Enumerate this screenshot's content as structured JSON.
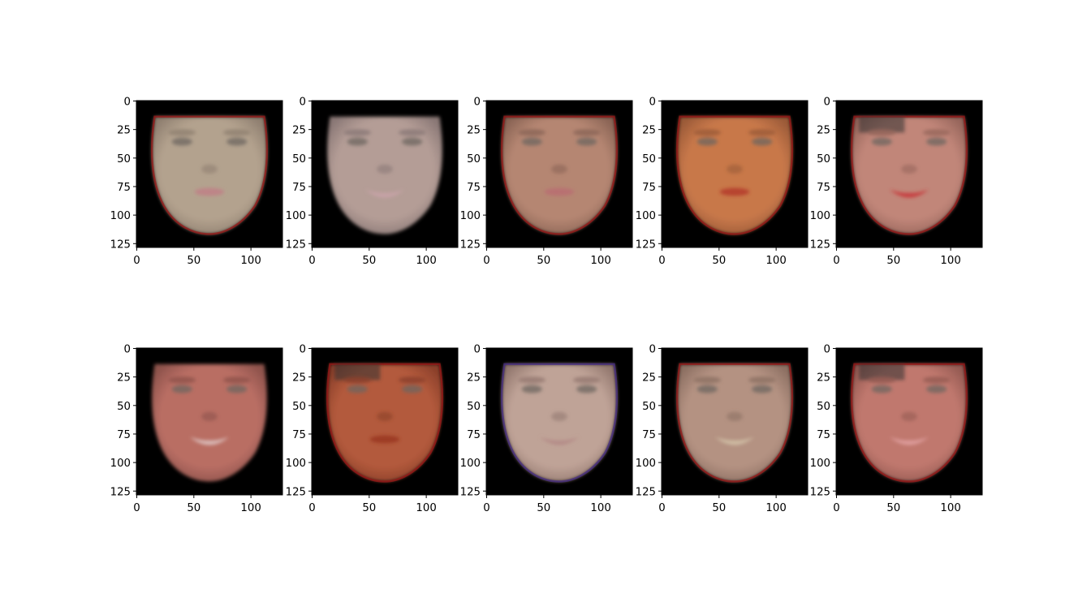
{
  "figure": {
    "rows": 2,
    "cols": 5,
    "image_extent": [
      0,
      127
    ],
    "x_ticks": [
      "0",
      "50",
      "100"
    ],
    "y_ticks": [
      "0",
      "25",
      "50",
      "75",
      "100",
      "125"
    ],
    "x_tick_values": [
      0,
      50,
      100
    ],
    "y_tick_values": [
      0,
      25,
      50,
      75,
      100,
      125
    ],
    "background_color": "#000000",
    "panels": [
      {
        "id": "face-1",
        "skin": "#b3a28e",
        "shade": "#8f7f70",
        "lips": "#c07f86",
        "smile": false,
        "artifact": "edges-red"
      },
      {
        "id": "face-2",
        "skin": "#b49d96",
        "shade": "#8a7876",
        "lips": "#c9a3a8",
        "smile": true,
        "artifact": "none"
      },
      {
        "id": "face-3",
        "skin": "#b58672",
        "shade": "#8a6455",
        "lips": "#b86c72",
        "smile": false,
        "artifact": "edges-red"
      },
      {
        "id": "face-4",
        "skin": "#c8784a",
        "shade": "#9a5a38",
        "lips": "#b4382c",
        "smile": false,
        "artifact": "edges-red"
      },
      {
        "id": "face-5",
        "skin": "#c18679",
        "shade": "#96655b",
        "lips": "#c8383b",
        "smile": true,
        "artifact": "patchy"
      },
      {
        "id": "face-6",
        "skin": "#b96e64",
        "shade": "#8d524b",
        "lips": "#dcc0be",
        "smile": true,
        "artifact": "none"
      },
      {
        "id": "face-7",
        "skin": "#b35a3c",
        "shade": "#8a3f2a",
        "lips": "#9a3622",
        "smile": false,
        "artifact": "patchy"
      },
      {
        "id": "face-8",
        "skin": "#bfa397",
        "shade": "#93786f",
        "lips": "#b48a86",
        "smile": true,
        "artifact": "edges-rgb"
      },
      {
        "id": "face-9",
        "skin": "#b49282",
        "shade": "#8c6f62",
        "lips": "#d2c0a6",
        "smile": true,
        "artifact": "edges-red"
      },
      {
        "id": "face-10",
        "skin": "#c0786e",
        "shade": "#945a52",
        "lips": "#e0a0a0",
        "smile": true,
        "artifact": "patchy"
      }
    ]
  }
}
